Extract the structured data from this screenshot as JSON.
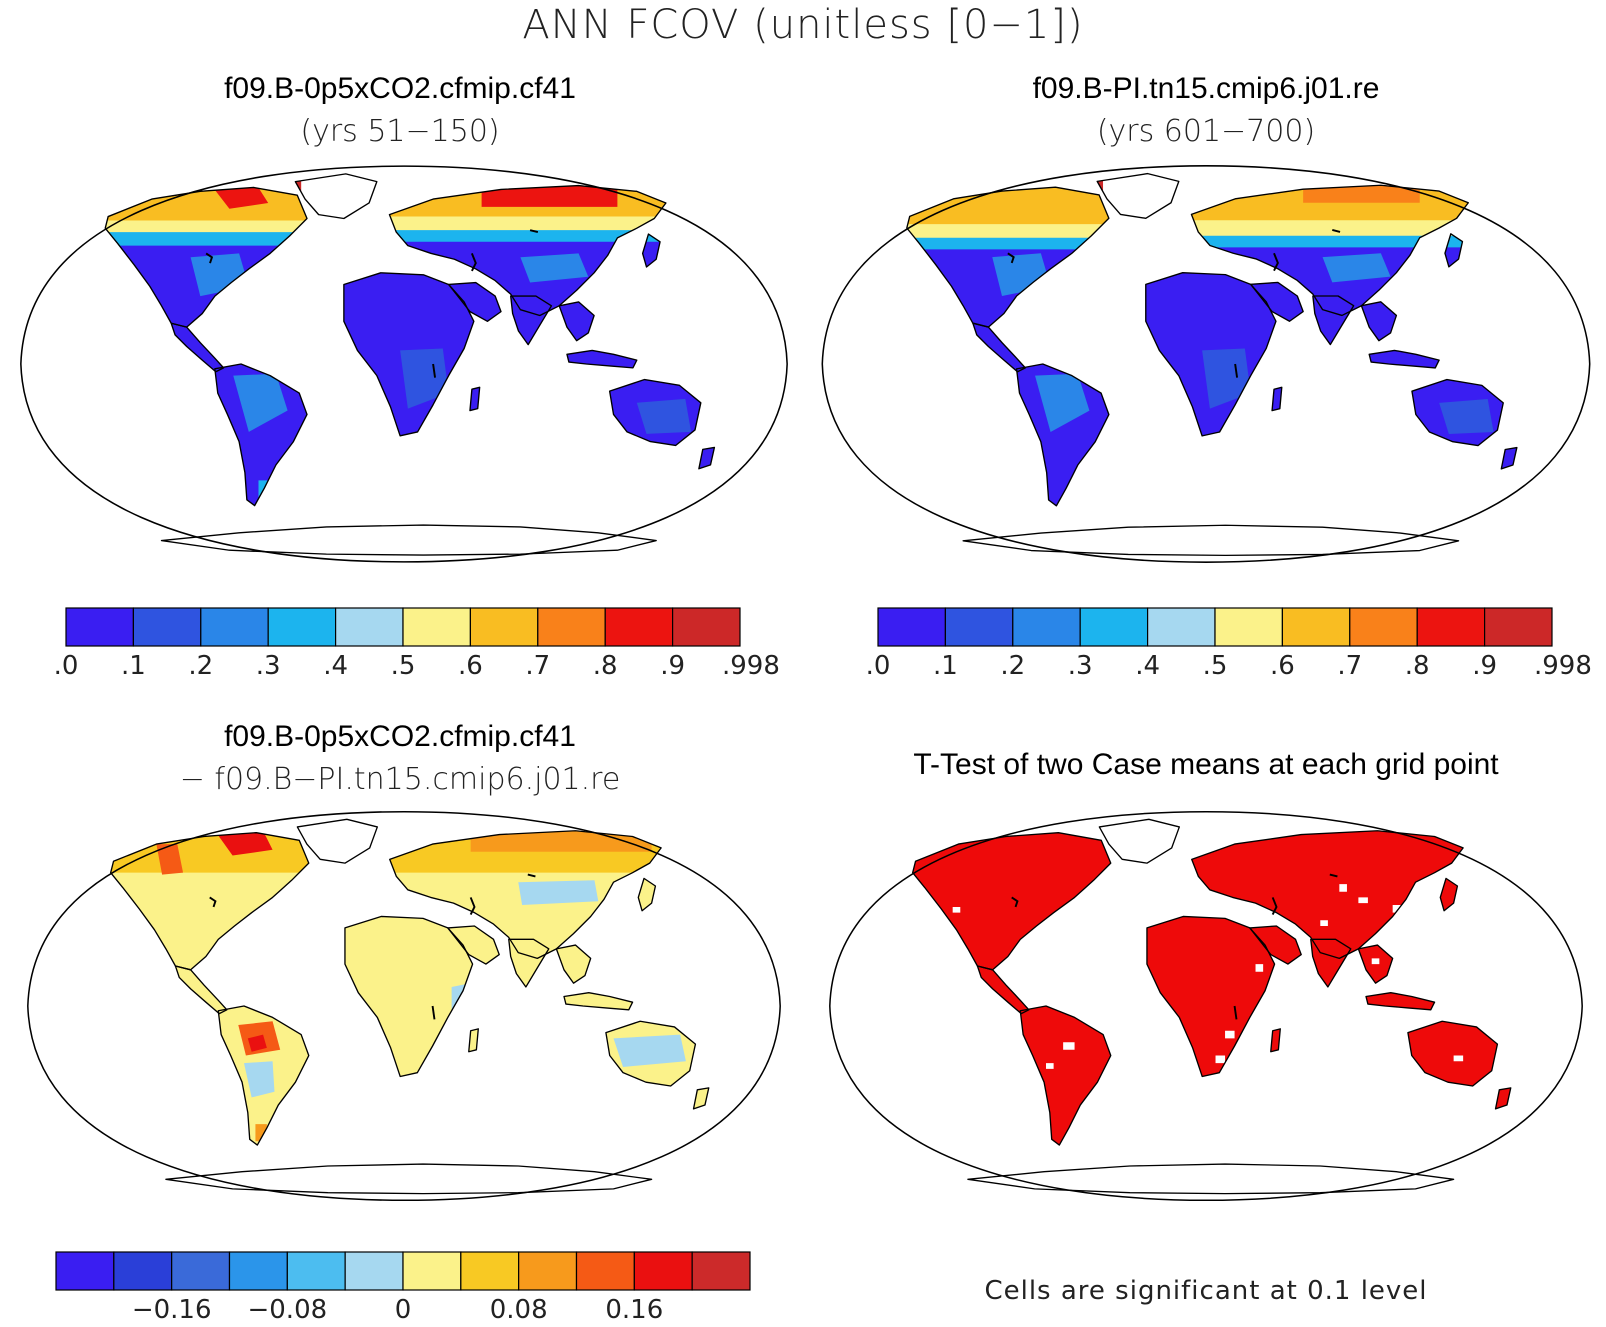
{
  "figure": {
    "title": "ANN FCOV (unitless [0−1])"
  },
  "panels": [
    {
      "id": "case1",
      "title": "f09.B-0p5xCO2.cfmip.cf41",
      "subtitle": "(yrs 51−150)",
      "map_type": "field",
      "colorbar": {
        "colors": [
          "#3a1ef2",
          "#2f54e0",
          "#2a86e8",
          "#1cb4ee",
          "#a6d8f0",
          "#fbf28a",
          "#f9bd22",
          "#f9811a",
          "#ec1410",
          "#cc2828"
        ],
        "tick_labels": [
          ".0",
          ".1",
          ".2",
          ".3",
          ".4",
          ".5",
          ".6",
          ".7",
          ".8",
          ".9",
          ".9986"
        ]
      }
    },
    {
      "id": "case2",
      "title": "f09.B-PI.tn15.cmip6.j01.re",
      "subtitle": "(yrs 601−700)",
      "map_type": "field",
      "colorbar": {
        "colors": [
          "#3a1ef2",
          "#2f54e0",
          "#2a86e8",
          "#1cb4ee",
          "#a6d8f0",
          "#fbf28a",
          "#f9bd22",
          "#f9811a",
          "#ec1410",
          "#cc2828"
        ],
        "tick_labels": [
          ".0",
          ".1",
          ".2",
          ".3",
          ".4",
          ".5",
          ".6",
          ".7",
          ".8",
          ".9",
          ".9986"
        ]
      }
    },
    {
      "id": "difference",
      "title": "f09.B-0p5xCO2.cfmip.cf41",
      "subtitle": "− f09.B−PI.tn15.cmip6.j01.re",
      "map_type": "difference",
      "colorbar": {
        "colors": [
          "#3a1ef2",
          "#2a3fd8",
          "#3a6ad9",
          "#2b95ea",
          "#4cbdf0",
          "#a6d8f0",
          "#fbf28a",
          "#f8c923",
          "#f79a1c",
          "#f55a15",
          "#ea1010",
          "#cc2a2a"
        ],
        "tick_labels": [
          "−0.16",
          "−0.08",
          "0",
          "0.08",
          "0.16"
        ]
      }
    },
    {
      "id": "ttest",
      "title": "T-Test of two Case means at each grid point",
      "map_type": "significance",
      "note": "Cells are significant at 0.1 level"
    }
  ]
}
